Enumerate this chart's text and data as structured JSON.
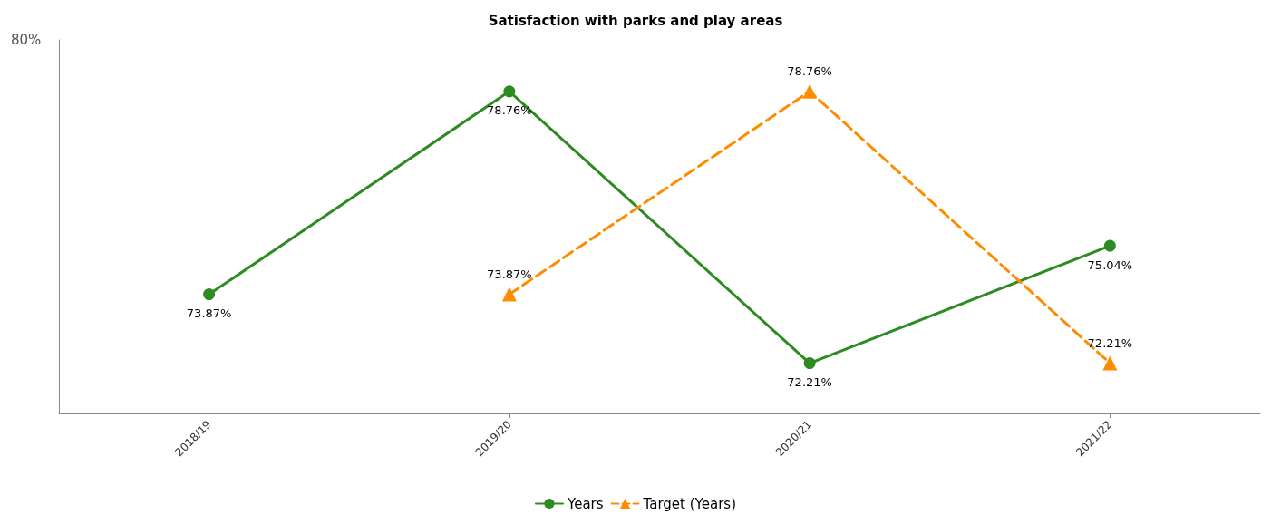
{
  "chart_data": {
    "type": "line",
    "title": "Satisfaction with parks and play areas",
    "categories": [
      "2018/19",
      "2019/20",
      "2020/21",
      "2021/22"
    ],
    "series": [
      {
        "name": "Years",
        "color": "#2e8b22",
        "marker": "circle",
        "line_style": "solid",
        "values": [
          73.87,
          78.76,
          72.21,
          75.04
        ],
        "value_labels": [
          "73.87%",
          "78.76%",
          "72.21%",
          "75.04%"
        ]
      },
      {
        "name": "Target (Years)",
        "color": "#ff8c00",
        "marker": "triangle",
        "line_style": "dashed",
        "values": [
          null,
          73.87,
          78.76,
          72.21
        ],
        "value_labels": [
          null,
          "73.87%",
          "78.76%",
          "72.21%"
        ]
      }
    ],
    "ylim": [
      71,
      80
    ],
    "annotations": [
      "80%"
    ],
    "legend": "bottom"
  }
}
